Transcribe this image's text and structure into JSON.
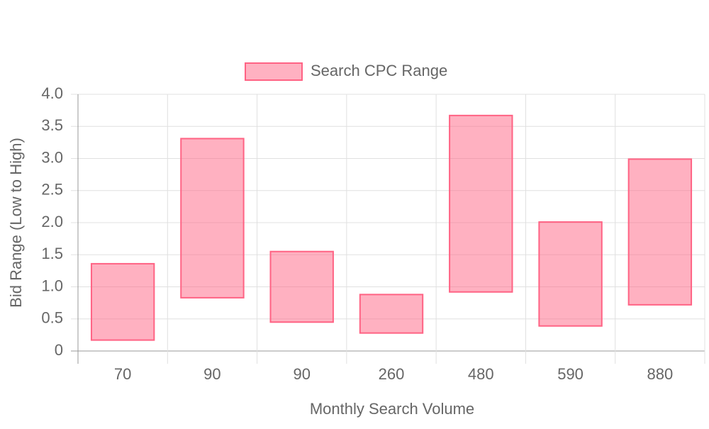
{
  "chart_data": {
    "type": "floating-bar",
    "x_label": "Monthly Search Volume",
    "y_label": "Bid Range (Low to High)",
    "categories": [
      "70",
      "90",
      "90",
      "260",
      "480",
      "590",
      "880"
    ],
    "series": [
      {
        "name": "Search CPC Range",
        "color": "#ff6384",
        "values": [
          [
            0.17,
            1.36
          ],
          [
            0.83,
            3.31
          ],
          [
            0.45,
            1.55
          ],
          [
            0.28,
            0.88
          ],
          [
            0.92,
            3.67
          ],
          [
            0.39,
            2.01
          ],
          [
            0.72,
            2.99
          ]
        ]
      }
    ],
    "ylim": [
      0,
      4
    ],
    "yticks": [
      0,
      0.5,
      {
        "value": 1,
        "label": "1.0"
      },
      1.5,
      {
        "value": 2,
        "label": "2.0"
      },
      2.5,
      {
        "value": 3,
        "label": "3.0"
      },
      3.5,
      {
        "value": 4,
        "label": "4.0"
      }
    ],
    "grid": true,
    "legend": "top"
  }
}
